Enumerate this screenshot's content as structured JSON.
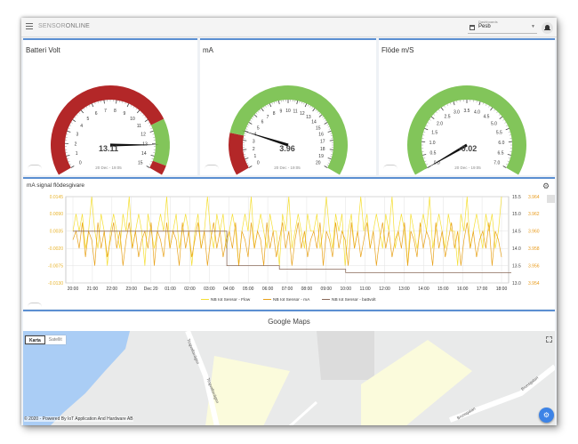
{
  "app": {
    "brand_light": "SENSOR",
    "brand_bold": "ONLINE"
  },
  "dashboard": {
    "label": "Dashboards",
    "selected": "Pesb"
  },
  "icons": {
    "menu": "hamburger-icon",
    "dashboard": "dashboard-icon",
    "notifications": "bell-icon",
    "settings": "gear-icon",
    "fullscreen": "fullscreen-icon"
  },
  "gauges": [
    {
      "title": "Batteri Volt",
      "value_text": "13.11",
      "value": 13.11,
      "min": 0,
      "max": 15,
      "ticks": [
        "0",
        "1",
        "2",
        "3",
        "4",
        "5",
        "6",
        "7",
        "8",
        "9",
        "10",
        "11",
        "12",
        "13",
        "14",
        "15"
      ],
      "bands": [
        {
          "from": 0,
          "to": 11.5,
          "color": "#b32728"
        },
        {
          "from": 11.5,
          "to": 14.4,
          "color": "#82c55a"
        },
        {
          "from": 14.4,
          "to": 15,
          "color": "#b32728"
        }
      ],
      "date": "20 Dec - 19:05"
    },
    {
      "title": "mA",
      "value_text": "3.96",
      "value": 3.96,
      "min": 0,
      "max": 20,
      "ticks": [
        "0",
        "1",
        "2",
        "3",
        "4",
        "5",
        "6",
        "7",
        "8",
        "9",
        "10",
        "11",
        "12",
        "13",
        "14",
        "15",
        "16",
        "17",
        "18",
        "19",
        "20"
      ],
      "bands": [
        {
          "from": 0,
          "to": 3.5,
          "color": "#b32728"
        },
        {
          "from": 3.5,
          "to": 20,
          "color": "#82c55a"
        }
      ],
      "date": "20 Dec - 19:05"
    },
    {
      "title": "Flöde m/S",
      "value_text": "-0.02",
      "value": -0.02,
      "min": 0,
      "max": 7,
      "ticks": [
        "0.0",
        "0.5",
        "1.0",
        "1.5",
        "2.0",
        "2.5",
        "3.0",
        "3.5",
        "4.0",
        "4.5",
        "5.0",
        "5.5",
        "6.0",
        "6.5",
        "7.0"
      ],
      "bands": [
        {
          "from": 0,
          "to": 7,
          "color": "#82c55a"
        }
      ],
      "date": "20 Dec - 19:05"
    }
  ],
  "chart": {
    "title": "mA signal flödesgivare"
  },
  "chart_data": {
    "type": "line",
    "title": "mA signal flödesgivare",
    "x_ticks": [
      "20:00",
      "21:00",
      "22:00",
      "23:00",
      "Dec 20",
      "01:00",
      "02:00",
      "03:00",
      "04:00",
      "05:00",
      "06:00",
      "07:00",
      "08:00",
      "09:00",
      "10:00",
      "11:00",
      "12:00",
      "13:00",
      "14:00",
      "15:00",
      "16:00",
      "17:00",
      "18:00"
    ],
    "y_left_ticks": [
      "0.0145",
      "0.0090",
      "0.0035",
      "-0.0020",
      "-0.0075",
      "-0.0130"
    ],
    "y_left_range": [
      -0.013,
      0.0145
    ],
    "y_mid_ticks": [
      "15.5",
      "15.0",
      "14.5",
      "14.0",
      "13.5",
      "13.0"
    ],
    "y_mid_range": [
      13.0,
      15.5
    ],
    "y_right_ticks": [
      "3.964",
      "3.962",
      "3.960",
      "3.958",
      "3.956",
      "3.954"
    ],
    "y_right_range": [
      3.954,
      3.964
    ],
    "grid": true,
    "legend_position": "bottom",
    "series": [
      {
        "name": "NB Iot Sensor - Flow",
        "color": "#f5df34",
        "axis": "left",
        "values": [
          0.0035,
          0.009,
          0.0035,
          0.009,
          -0.002,
          0.0035,
          0.0145,
          0.0035,
          -0.002,
          0.009,
          0.0035,
          -0.0075,
          0.0035,
          0.009,
          0.0035,
          -0.002,
          0.009,
          0.0035,
          0.0145,
          -0.002,
          0.0035,
          0.009,
          0.0035,
          -0.0075,
          0.009,
          0.0035,
          -0.002,
          0.0035,
          0.009,
          0.0035,
          0.0145,
          -0.002,
          0.0035,
          0.009,
          -0.002,
          0.0035,
          0.009,
          0.0035,
          -0.0075,
          0.0035,
          0.009,
          -0.002,
          0.0035,
          0.0145,
          0.0035,
          -0.002,
          0.009,
          0.0035,
          0.009,
          -0.002,
          0.0035,
          0.009,
          0.0035,
          -0.0075,
          0.0035,
          0.009,
          0.0035,
          0.0145,
          -0.002,
          0.0035,
          0.009,
          0.0035,
          -0.002,
          0.009,
          0.0035,
          0.0035,
          -0.0075,
          0.009,
          0.0035,
          0.0145,
          -0.002,
          0.0035,
          0.009,
          0.0035,
          -0.002,
          0.009,
          0.0035,
          0.0035,
          0.009,
          -0.002,
          0.0035,
          0.0145,
          0.0035,
          -0.002,
          0.009,
          0.0035,
          0.009,
          -0.0075,
          0.0035,
          0.009,
          -0.002,
          0.0035,
          0.0145,
          0.0035,
          0.009,
          -0.002,
          0.0035,
          0.009,
          0.0035,
          -0.002,
          0.009,
          0.0035,
          0.0145,
          -0.002,
          0.0035,
          0.009,
          0.0035,
          -0.0075,
          0.009,
          0.0035,
          -0.002,
          0.0035,
          0.009,
          0.0035,
          0.0145,
          -0.002,
          0.0035,
          0.009,
          0.0035,
          -0.002,
          0.009,
          0.0035,
          0.0035,
          -0.0075,
          0.009,
          0.0035,
          0.0145,
          -0.002,
          0.0035,
          0.009,
          0.0035,
          -0.002,
          0.009,
          0.0035,
          0.009,
          -0.002,
          0.0035,
          0.0145
        ]
      },
      {
        "name": "NB Iot Sensor - mA",
        "color": "#e8a21a",
        "axis": "right",
        "values": [
          3.959,
          3.96,
          3.958,
          3.961,
          3.957,
          3.96,
          3.959,
          3.956,
          3.961,
          3.958,
          3.96,
          3.957,
          3.959,
          3.961,
          3.958,
          3.96,
          3.956,
          3.959,
          3.961,
          3.958,
          3.96,
          3.957,
          3.959,
          3.96,
          3.958,
          3.961,
          3.956,
          3.96,
          3.959,
          3.957,
          3.961,
          3.958,
          3.96,
          3.959,
          3.956,
          3.961,
          3.958,
          3.96,
          3.957,
          3.959,
          3.961,
          3.958,
          3.96,
          3.956,
          3.959,
          3.961,
          3.958,
          3.96,
          3.957,
          3.959,
          3.96,
          3.958,
          3.961,
          3.956,
          3.96,
          3.959,
          3.957,
          3.961,
          3.958,
          3.96,
          3.959,
          3.956,
          3.961,
          3.958,
          3.96,
          3.957,
          3.959,
          3.961,
          3.958,
          3.96,
          3.956,
          3.959,
          3.961,
          3.958,
          3.96,
          3.957,
          3.959,
          3.96,
          3.958,
          3.961,
          3.956,
          3.96,
          3.959,
          3.957,
          3.961,
          3.958,
          3.96,
          3.959,
          3.956,
          3.961,
          3.958,
          3.96,
          3.957,
          3.959,
          3.961,
          3.958,
          3.96,
          3.956,
          3.959,
          3.961,
          3.958,
          3.96,
          3.957,
          3.959,
          3.96,
          3.958,
          3.961,
          3.956,
          3.96,
          3.959,
          3.957,
          3.961,
          3.958,
          3.96,
          3.959,
          3.956,
          3.961,
          3.958,
          3.96,
          3.957,
          3.959,
          3.961,
          3.958,
          3.96,
          3.956,
          3.959,
          3.961,
          3.958,
          3.96,
          3.957,
          3.959,
          3.96,
          3.958,
          3.961,
          3.956,
          3.96,
          3.959,
          3.957
        ]
      },
      {
        "name": "NB Iot Sensor - battvolt",
        "color": "#8a6a5a",
        "axis": "mid",
        "points": [
          [
            0,
            14.5
          ],
          [
            7.9,
            14.5
          ],
          [
            7.9,
            13.5
          ],
          [
            10.6,
            13.5
          ],
          [
            10.6,
            13.4
          ],
          [
            14.0,
            13.4
          ],
          [
            14.0,
            13.3
          ],
          [
            22.5,
            13.3
          ]
        ]
      }
    ]
  },
  "maps": {
    "title": "Google Maps",
    "btn_map": "Karta",
    "btn_satellite": "Satellit",
    "footer": "© 2020 - Powered By IoT Application And Hardware AB",
    "streets": [
      "Tingvallavägen",
      "Tingvallavägen",
      "Brunsgatan",
      "Brunsgatan"
    ]
  }
}
